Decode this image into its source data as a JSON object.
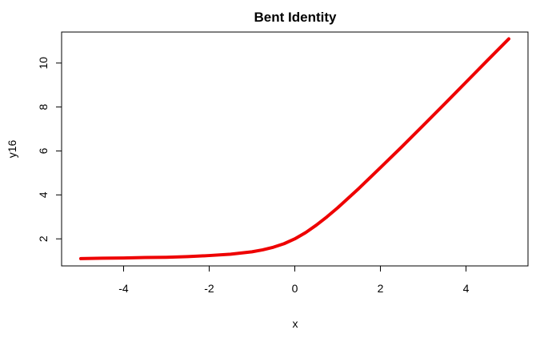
{
  "chart_data": {
    "type": "line",
    "title": "Bent Identity",
    "xlabel": "x",
    "ylabel": "y16",
    "xlim": [
      -5,
      5
    ],
    "ylim": [
      1.06,
      11.12
    ],
    "grid": false,
    "x_ticks": [
      -4,
      -2,
      0,
      2,
      4
    ],
    "x_tick_labels": [
      "-4",
      "-2",
      "0",
      "2",
      "4"
    ],
    "y_ticks": [
      2,
      4,
      6,
      8,
      10
    ],
    "y_tick_labels": [
      "2",
      "4",
      "6",
      "8",
      "10"
    ],
    "series": [
      {
        "color": "#ee0000",
        "x": [
          -5,
          -4.5,
          -4,
          -3.5,
          -3,
          -2.5,
          -2,
          -1.5,
          -1,
          -0.75,
          -0.5,
          -0.25,
          0,
          0.25,
          0.5,
          0.75,
          1,
          1.5,
          2,
          2.5,
          3,
          3.5,
          4,
          4.5,
          5
        ],
        "y": [
          1.1,
          1.12,
          1.13,
          1.15,
          1.16,
          1.19,
          1.24,
          1.3,
          1.41,
          1.5,
          1.62,
          1.78,
          2.0,
          2.28,
          2.62,
          3.0,
          3.41,
          4.3,
          5.24,
          6.19,
          7.16,
          8.14,
          9.13,
          10.12,
          11.1
        ]
      }
    ]
  }
}
